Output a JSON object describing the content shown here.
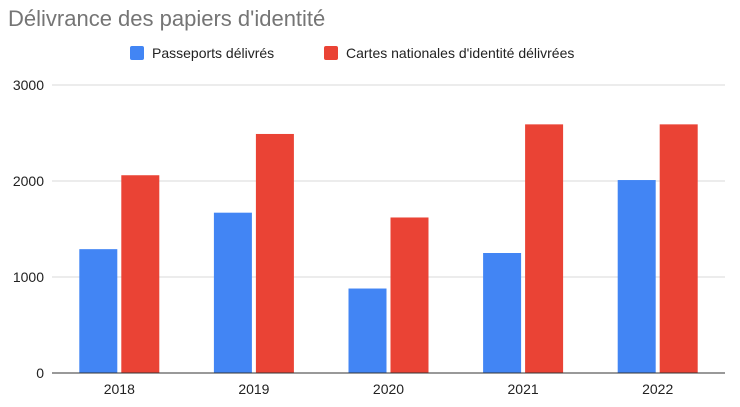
{
  "chart_data": {
    "type": "bar",
    "title": "Délivrance des papiers d'identité",
    "categories": [
      "2018",
      "2019",
      "2020",
      "2021",
      "2022"
    ],
    "series": [
      {
        "name": "Passeports délivrés",
        "color": "#4285f4",
        "values": [
          1290,
          1670,
          880,
          1250,
          2010
        ]
      },
      {
        "name": "Cartes nationales d'identité délivrées",
        "color": "#ea4335",
        "values": [
          2060,
          2490,
          1620,
          2590,
          2590
        ]
      }
    ],
    "ylim": [
      0,
      3000
    ],
    "yticks": [
      "0",
      "1000",
      "2000",
      "3000"
    ],
    "grid": true,
    "legend_position": "top"
  }
}
